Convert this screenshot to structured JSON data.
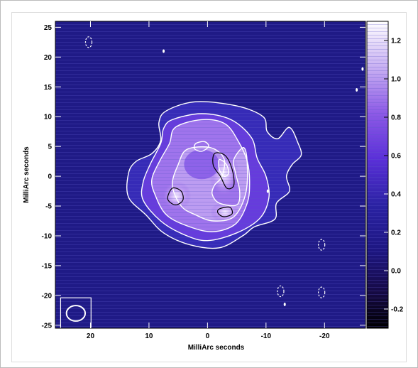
{
  "chart_data": {
    "type": "heatmap",
    "title": "",
    "xlabel": "MilliArc seconds",
    "ylabel": "MilliArc seconds",
    "xlim": [
      26,
      -27
    ],
    "ylim": [
      -25.5,
      26
    ],
    "x_ticks": [
      20,
      10,
      0,
      -10,
      -20
    ],
    "x_tick_labels": [
      "20",
      "10",
      "0",
      "-10",
      "-20"
    ],
    "y_ticks": [
      25,
      20,
      15,
      10,
      5,
      0,
      -5,
      -10,
      -15,
      -20,
      -25
    ],
    "y_tick_labels": [
      "25",
      "20",
      "15",
      "10",
      "5",
      "0",
      "-5",
      "-10",
      "-15",
      "-20",
      "-25"
    ],
    "colorbar": {
      "range": [
        -0.3,
        1.3
      ],
      "ticks": [
        1.2,
        1.0,
        0.8,
        0.6,
        0.4,
        0.2,
        0.0,
        -0.2
      ],
      "tick_labels": [
        "1.2",
        "1.0",
        "0.8",
        "0.6",
        "0.4",
        "0.2",
        "0.0",
        "-0.2"
      ],
      "colors": [
        "#000000",
        "#170a4a",
        "#1e1680",
        "#2d23a0",
        "#6a2fe0",
        "#9a6ae8",
        "#d6c2f4",
        "#ffffff"
      ]
    },
    "background_color": "#1f1a86",
    "grid": false,
    "legend": "none",
    "contours": [
      {
        "name": "outer",
        "color": "#ffffff",
        "points": [
          [
            7,
            11
          ],
          [
            2,
            12.5
          ],
          [
            -5,
            11.8
          ],
          [
            -9.5,
            10
          ],
          [
            -10.2,
            7.5
          ],
          [
            -12,
            6.3
          ],
          [
            -14,
            8.2
          ],
          [
            -15.5,
            5.5
          ],
          [
            -16,
            3.5
          ],
          [
            -14.5,
            2
          ],
          [
            -13.5,
            0
          ],
          [
            -14,
            -2.5
          ],
          [
            -11.8,
            -4.5
          ],
          [
            -11.5,
            -7.2
          ],
          [
            -8,
            -8.5
          ],
          [
            -6,
            -10
          ],
          [
            -2,
            -12
          ],
          [
            3,
            -11.5
          ],
          [
            7.5,
            -9.5
          ],
          [
            10.5,
            -6.5
          ],
          [
            13.5,
            -3.5
          ],
          [
            13.5,
            0.5
          ],
          [
            12.2,
            2.5
          ],
          [
            9.5,
            3.8
          ],
          [
            8,
            6
          ],
          [
            8.3,
            9
          ]
        ]
      },
      {
        "name": "level-2",
        "color": "#ffffff",
        "points": [
          [
            6,
            9.5
          ],
          [
            1,
            10.5
          ],
          [
            -4,
            9.5
          ],
          [
            -7.5,
            6.5
          ],
          [
            -8.5,
            3
          ],
          [
            -10,
            0
          ],
          [
            -10.5,
            -3.5
          ],
          [
            -9,
            -7
          ],
          [
            -5,
            -9.5
          ],
          [
            0,
            -10.8
          ],
          [
            4,
            -9.8
          ],
          [
            8,
            -7.5
          ],
          [
            11,
            -4
          ],
          [
            11,
            -1
          ],
          [
            9.8,
            2
          ],
          [
            8,
            5.5
          ],
          [
            7.5,
            8
          ]
        ]
      },
      {
        "name": "level-3",
        "color": "#ffffff",
        "points": [
          [
            5.5,
            8.2
          ],
          [
            1,
            9.5
          ],
          [
            -3,
            8.8
          ],
          [
            -5.3,
            5.8
          ],
          [
            -6.8,
            2.5
          ],
          [
            -7.2,
            -1
          ],
          [
            -6.8,
            -4.5
          ],
          [
            -4.8,
            -8
          ],
          [
            -1,
            -9.3
          ],
          [
            3,
            -8.5
          ],
          [
            7,
            -6.5
          ],
          [
            9,
            -3
          ],
          [
            9.5,
            -0.5
          ],
          [
            8.2,
            2.5
          ],
          [
            6.5,
            5.5
          ]
        ]
      },
      {
        "name": "inner-gap",
        "color": "#ffffff",
        "points": [
          [
            3.5,
            4.5
          ],
          [
            -0.5,
            4.8
          ],
          [
            -2.8,
            3
          ],
          [
            -2.5,
            0
          ],
          [
            -1.2,
            -1.5
          ],
          [
            -0.8,
            -3
          ],
          [
            -2,
            -4.5
          ],
          [
            -5,
            -4.8
          ],
          [
            -5.5,
            -2.5
          ],
          [
            -4.8,
            0.5
          ],
          [
            -4.5,
            2.8
          ],
          [
            -6.2,
            4.8
          ],
          [
            -6.8,
            2
          ],
          [
            -6.5,
            -3
          ],
          [
            -4.5,
            -6.8
          ],
          [
            -1,
            -7.5
          ],
          [
            2,
            -6.5
          ],
          [
            4.5,
            -5
          ],
          [
            6,
            -1.5
          ],
          [
            5,
            2
          ]
        ]
      },
      {
        "name": "core-right",
        "color": "#000000",
        "points": [
          [
            -1.2,
            3.8
          ],
          [
            -3,
            3.5
          ],
          [
            -4.2,
            1.2
          ],
          [
            -4.5,
            -1.5
          ],
          [
            -3.3,
            -2
          ],
          [
            -2.2,
            0
          ],
          [
            -1,
            1.8
          ]
        ]
      },
      {
        "name": "core-right-peak",
        "color": "#ffffff",
        "points": [
          [
            -2,
            2.8
          ],
          [
            -3.2,
            2
          ],
          [
            -3.6,
            0.5
          ],
          [
            -2.8,
            0
          ],
          [
            -2,
            1.2
          ]
        ]
      },
      {
        "name": "core-left",
        "color": "#000000",
        "points": [
          [
            6,
            -2
          ],
          [
            4.5,
            -2.5
          ],
          [
            4.2,
            -4
          ],
          [
            5.5,
            -4.8
          ],
          [
            6.8,
            -3.8
          ]
        ]
      },
      {
        "name": "core-bottom",
        "color": "#000000",
        "points": [
          [
            -2,
            -5.5
          ],
          [
            -3.8,
            -5.2
          ],
          [
            -4.2,
            -6.3
          ],
          [
            -2.8,
            -6.8
          ],
          [
            -1.8,
            -6.2
          ]
        ]
      },
      {
        "name": "ring-top-left",
        "color": "#ffffff",
        "points": [
          [
            2,
            5.5
          ],
          [
            0.5,
            5.8
          ],
          [
            -0.2,
            5
          ],
          [
            1,
            4.2
          ],
          [
            2.2,
            4.6
          ]
        ]
      }
    ],
    "dashed_blobs": [
      [
        20.3,
        22.5
      ],
      [
        -19.5,
        -11.5
      ],
      [
        -12.5,
        -19.3
      ],
      [
        -19.5,
        -19.5
      ]
    ],
    "small_marks": [
      [
        7.5,
        21
      ],
      [
        -26.5,
        18
      ],
      [
        -25.5,
        14.5
      ],
      [
        -13.2,
        -21.5
      ],
      [
        -10.3,
        -2.5
      ]
    ],
    "beam": {
      "label": "restoring-beam",
      "x": 22.5,
      "y": -23,
      "major": 3.2,
      "minor": 2.6
    }
  }
}
